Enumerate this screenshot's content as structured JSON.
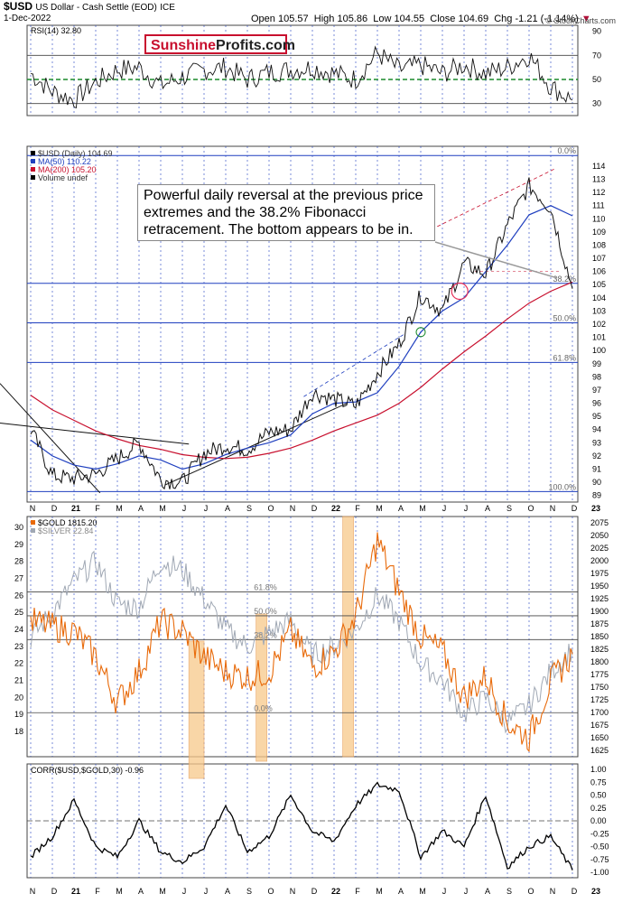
{
  "header": {
    "symbol": "$USD",
    "description": "US Dollar - Cash Settle (EOD)",
    "exchange": "ICE",
    "date": "1-Dec-2022",
    "open_label": "Open",
    "open": "105.57",
    "high_label": "High",
    "high": "105.86",
    "low_label": "Low",
    "low": "104.55",
    "close_label": "Close",
    "close": "104.69",
    "chg_label": "Chg",
    "chg": "-1.21 (-1.14%)",
    "copyright": "© StockCharts.com"
  },
  "logo": {
    "part1": "Sunshine",
    "part2": "Profits.com"
  },
  "annotation": "Powerful daily reversal at the previous price extremes and the 38.2% Fibonacci retracement. The bottom appears to be in.",
  "x_axis": {
    "labels": [
      "N",
      "D",
      "21",
      "F",
      "M",
      "A",
      "M",
      "J",
      "J",
      "A",
      "S",
      "O",
      "N",
      "D",
      "22",
      "F",
      "M",
      "A",
      "M",
      "J",
      "J",
      "A",
      "S",
      "O",
      "N",
      "D",
      "23"
    ],
    "bold": [
      "21",
      "22",
      "23"
    ]
  },
  "chart_data": [
    {
      "type": "line",
      "title": "RSI(14) 32.80",
      "y_ticks": [
        90,
        70,
        50,
        30
      ],
      "ylim": [
        20,
        95
      ],
      "reference_lines": [
        70,
        50,
        30
      ],
      "last_value": 32.8,
      "points": [
        [
          "N",
          55
        ],
        [
          "D",
          40
        ],
        [
          "21",
          33
        ],
        [
          "F",
          48
        ],
        [
          "M",
          58
        ],
        [
          "A",
          60
        ],
        [
          "M",
          45
        ],
        [
          "J",
          52
        ],
        [
          "J",
          58
        ],
        [
          "A",
          60
        ],
        [
          "S",
          50
        ],
        [
          "O",
          56
        ],
        [
          "N",
          58
        ],
        [
          "D",
          60
        ],
        [
          "22",
          55
        ],
        [
          "F",
          50
        ],
        [
          "M",
          72
        ],
        [
          "A",
          58
        ],
        [
          "M",
          62
        ],
        [
          "J",
          55
        ],
        [
          "J",
          62
        ],
        [
          "A",
          55
        ],
        [
          "S",
          60
        ],
        [
          "O",
          70
        ],
        [
          "N",
          44
        ],
        [
          "D",
          32.8
        ]
      ]
    },
    {
      "type": "line",
      "title": "$USD (Daily) 104.69",
      "legend": [
        {
          "name": "$USD (Daily) 104.69",
          "color": "#000000"
        },
        {
          "name": "MA(50) 110.22",
          "color": "#1f3fbf"
        },
        {
          "name": "MA(200) 105.20",
          "color": "#c8102e"
        },
        {
          "name": "Volume undef",
          "color": "#000000"
        }
      ],
      "y_ticks": [
        114,
        113,
        112,
        111,
        110,
        109,
        108,
        107,
        106,
        105,
        104,
        103,
        102,
        101,
        100,
        99,
        98,
        97,
        96,
        95,
        94,
        93,
        92,
        91,
        90,
        89
      ],
      "ylim": [
        88.5,
        115.5
      ],
      "fibonacci": [
        {
          "label": "0.0%",
          "value": 114.8
        },
        {
          "label": "38.2%",
          "value": 105.1
        },
        {
          "label": "50.0%",
          "value": 102.1
        },
        {
          "label": "61.8%",
          "value": 99.1
        },
        {
          "label": "100.0%",
          "value": 89.3
        }
      ],
      "series": [
        {
          "name": "$USD",
          "values": [
            [
              "N",
              94.0
            ],
            [
              "D",
              90.5
            ],
            [
              "21",
              90.3
            ],
            [
              "F",
              90.6
            ],
            [
              "M",
              91.8
            ],
            [
              "A",
              93.0
            ],
            [
              "M",
              90.2
            ],
            [
              "J",
              90.0
            ],
            [
              "J",
              92.2
            ],
            [
              "A",
              92.8
            ],
            [
              "S",
              92.5
            ],
            [
              "O",
              93.8
            ],
            [
              "N",
              94.0
            ],
            [
              "D",
              96.8
            ],
            [
              "22",
              96.3
            ],
            [
              "F",
              95.8
            ],
            [
              "M",
              98.3
            ],
            [
              "A",
              100.5
            ],
            [
              "M",
              104.2
            ],
            [
              "J",
              103.0
            ],
            [
              "J",
              106.6
            ],
            [
              "A",
              105.8
            ],
            [
              "S",
              109.5
            ],
            [
              "O",
              112.5
            ],
            [
              "N",
              110.8
            ],
            [
              "D",
              104.69
            ]
          ]
        },
        {
          "name": "MA(50)",
          "values": [
            [
              "N",
              93.2
            ],
            [
              "D",
              92.0
            ],
            [
              "21",
              91.3
            ],
            [
              "F",
              91.0
            ],
            [
              "M",
              91.4
            ],
            [
              "A",
              92.0
            ],
            [
              "M",
              91.7
            ],
            [
              "J",
              91.0
            ],
            [
              "J",
              91.4
            ],
            [
              "A",
              92.1
            ],
            [
              "S",
              92.6
            ],
            [
              "O",
              93.0
            ],
            [
              "N",
              93.6
            ],
            [
              "D",
              95.2
            ],
            [
              "22",
              96.0
            ],
            [
              "F",
              96.1
            ],
            [
              "M",
              96.8
            ],
            [
              "A",
              98.8
            ],
            [
              "M",
              101.4
            ],
            [
              "J",
              103.0
            ],
            [
              "J",
              104.0
            ],
            [
              "A",
              106.0
            ],
            [
              "S",
              108.0
            ],
            [
              "O",
              110.3
            ],
            [
              "N",
              111.0
            ],
            [
              "D",
              110.22
            ]
          ]
        },
        {
          "name": "MA(200)",
          "values": [
            [
              "N",
              96.6
            ],
            [
              "D",
              95.5
            ],
            [
              "21",
              94.7
            ],
            [
              "F",
              93.9
            ],
            [
              "M",
              93.3
            ],
            [
              "A",
              92.8
            ],
            [
              "M",
              92.5
            ],
            [
              "J",
              92.1
            ],
            [
              "J",
              91.9
            ],
            [
              "A",
              91.8
            ],
            [
              "S",
              91.9
            ],
            [
              "O",
              92.2
            ],
            [
              "N",
              92.6
            ],
            [
              "D",
              93.2
            ],
            [
              "22",
              93.9
            ],
            [
              "F",
              94.5
            ],
            [
              "M",
              95.1
            ],
            [
              "A",
              96.0
            ],
            [
              "M",
              97.2
            ],
            [
              "J",
              98.6
            ],
            [
              "J",
              99.9
            ],
            [
              "A",
              101.1
            ],
            [
              "S",
              102.4
            ],
            [
              "O",
              103.6
            ],
            [
              "N",
              104.5
            ],
            [
              "D",
              105.2
            ]
          ]
        }
      ]
    },
    {
      "type": "line",
      "legend": [
        {
          "name": "$GOLD 1815.20",
          "color": "#e86a0a"
        },
        {
          "name": "$SILVER 22.84",
          "color": "#a0a8b4"
        }
      ],
      "y_ticks_left": [
        30,
        29,
        28,
        27,
        26,
        25,
        24,
        23,
        22,
        21,
        20,
        19,
        18
      ],
      "y_ticks_right": [
        2075,
        2050,
        2025,
        2000,
        1975,
        1950,
        1925,
        1900,
        1875,
        1850,
        1825,
        1800,
        1775,
        1750,
        1725,
        1700,
        1675,
        1650,
        1625
      ],
      "fib_labels": [
        "61.8%",
        "50.0%",
        "38.2%",
        "0.0%"
      ],
      "series": [
        {
          "name": "$GOLD",
          "values": [
            [
              "N",
              1880
            ],
            [
              "D",
              1870
            ],
            [
              "21",
              1860
            ],
            [
              "F",
              1810
            ],
            [
              "M",
              1720
            ],
            [
              "A",
              1780
            ],
            [
              "M",
              1880
            ],
            [
              "J",
              1860
            ],
            [
              "J",
              1810
            ],
            [
              "A",
              1780
            ],
            [
              "S",
              1770
            ],
            [
              "O",
              1780
            ],
            [
              "N",
              1860
            ],
            [
              "D",
              1790
            ],
            [
              "22",
              1820
            ],
            [
              "F",
              1890
            ],
            [
              "M",
              2040
            ],
            [
              "A",
              1940
            ],
            [
              "M",
              1850
            ],
            [
              "J",
              1820
            ],
            [
              "J",
              1730
            ],
            [
              "A",
              1770
            ],
            [
              "S",
              1680
            ],
            [
              "O",
              1650
            ],
            [
              "N",
              1760
            ],
            [
              "D",
              1815.2
            ]
          ]
        },
        {
          "name": "$SILVER",
          "values": [
            [
              "N",
              23.5
            ],
            [
              "D",
              25.0
            ],
            [
              "21",
              26.8
            ],
            [
              "F",
              28.0
            ],
            [
              "M",
              25.5
            ],
            [
              "A",
              25.3
            ],
            [
              "M",
              28.0
            ],
            [
              "J",
              27.5
            ],
            [
              "J",
              25.8
            ],
            [
              "A",
              24.0
            ],
            [
              "S",
              23.0
            ],
            [
              "O",
              23.8
            ],
            [
              "N",
              24.5
            ],
            [
              "D",
              22.5
            ],
            [
              "22",
              23.0
            ],
            [
              "F",
              24.0
            ],
            [
              "M",
              26.0
            ],
            [
              "A",
              24.5
            ],
            [
              "M",
              22.0
            ],
            [
              "J",
              21.0
            ],
            [
              "J",
              19.0
            ],
            [
              "A",
              20.0
            ],
            [
              "S",
              18.5
            ],
            [
              "O",
              19.5
            ],
            [
              "N",
              21.5
            ],
            [
              "D",
              22.84
            ]
          ]
        }
      ]
    },
    {
      "type": "line",
      "title": "CORR($USD,$GOLD,30) -0.96",
      "y_ticks": [
        1.0,
        0.75,
        0.5,
        0.25,
        0.0,
        -0.25,
        -0.5,
        -0.75,
        -1.0
      ],
      "ylim": [
        -1.0,
        1.0
      ],
      "values": [
        [
          "N",
          -0.7
        ],
        [
          "D",
          -0.3
        ],
        [
          "21",
          0.4
        ],
        [
          "F",
          -0.5
        ],
        [
          "M",
          -0.7
        ],
        [
          "A",
          0.0
        ],
        [
          "M",
          -0.6
        ],
        [
          "J",
          -0.8
        ],
        [
          "J",
          -0.5
        ],
        [
          "A",
          0.3
        ],
        [
          "S",
          -0.6
        ],
        [
          "O",
          -0.3
        ],
        [
          "N",
          0.5
        ],
        [
          "D",
          -0.2
        ],
        [
          "22",
          -0.4
        ],
        [
          "F",
          0.3
        ],
        [
          "M",
          0.7
        ],
        [
          "A",
          0.6
        ],
        [
          "M",
          -0.7
        ],
        [
          "J",
          -0.2
        ],
        [
          "J",
          -0.5
        ],
        [
          "A",
          0.5
        ],
        [
          "S",
          -0.9
        ],
        [
          "O",
          -0.5
        ],
        [
          "N",
          -0.3
        ],
        [
          "D",
          -0.96
        ]
      ]
    }
  ],
  "colors": {
    "price": "#000000",
    "ma50": "#1f3fbf",
    "ma200": "#c8102e",
    "gold": "#e86a0a",
    "silver": "#a0a8b4",
    "grid": "#1f3fbf",
    "highlight": "#f7c98a",
    "rsi_mid": "#1a8a2a",
    "circle": "#e8325a"
  }
}
